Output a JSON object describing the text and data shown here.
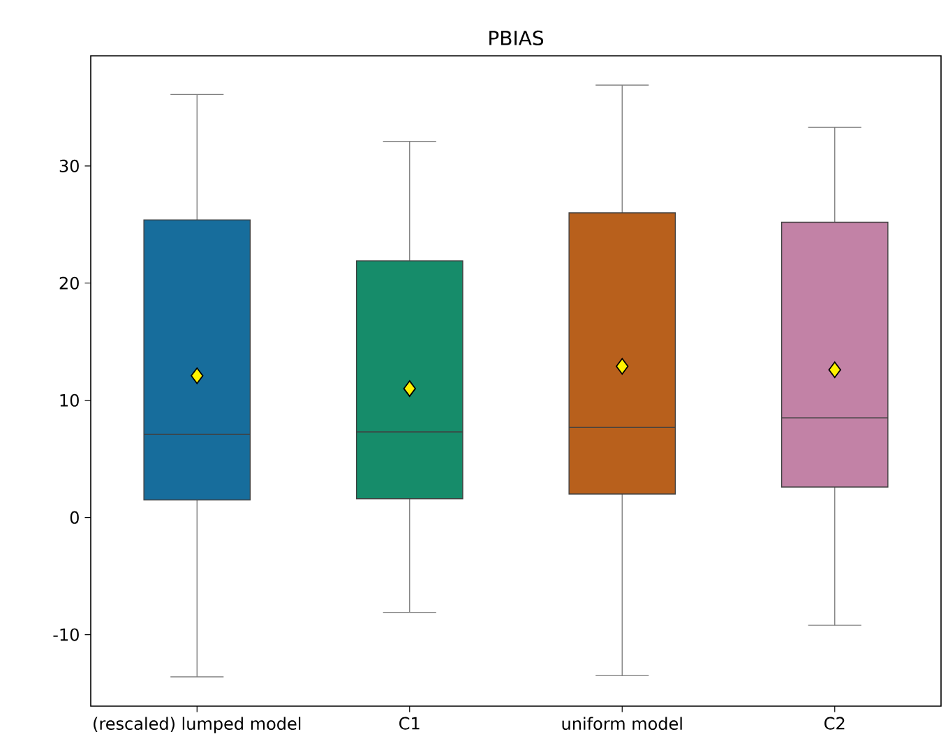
{
  "chart_data": {
    "type": "box",
    "title": "PBIAS",
    "categories": [
      "(rescaled) lumped model",
      "C1",
      "uniform model",
      "C2"
    ],
    "boxes": [
      {
        "low": -13.6,
        "q1": 1.5,
        "median": 7.1,
        "q3": 25.4,
        "high": 36.1,
        "mean": 12.1
      },
      {
        "low": -8.1,
        "q1": 1.6,
        "median": 7.3,
        "q3": 21.9,
        "high": 32.1,
        "mean": 11.0
      },
      {
        "low": -13.5,
        "q1": 2.0,
        "median": 7.7,
        "q3": 26.0,
        "high": 36.9,
        "mean": 12.9
      },
      {
        "low": -9.2,
        "q1": 2.6,
        "median": 8.5,
        "q3": 25.2,
        "high": 33.3,
        "mean": 12.6
      }
    ],
    "colors": [
      "#176d9c",
      "#168c6a",
      "#b8601c",
      "#c282a6"
    ],
    "ylim": [
      -16.1,
      39.4
    ],
    "yticks": [
      -10,
      0,
      10,
      20,
      30
    ],
    "grid": false
  }
}
